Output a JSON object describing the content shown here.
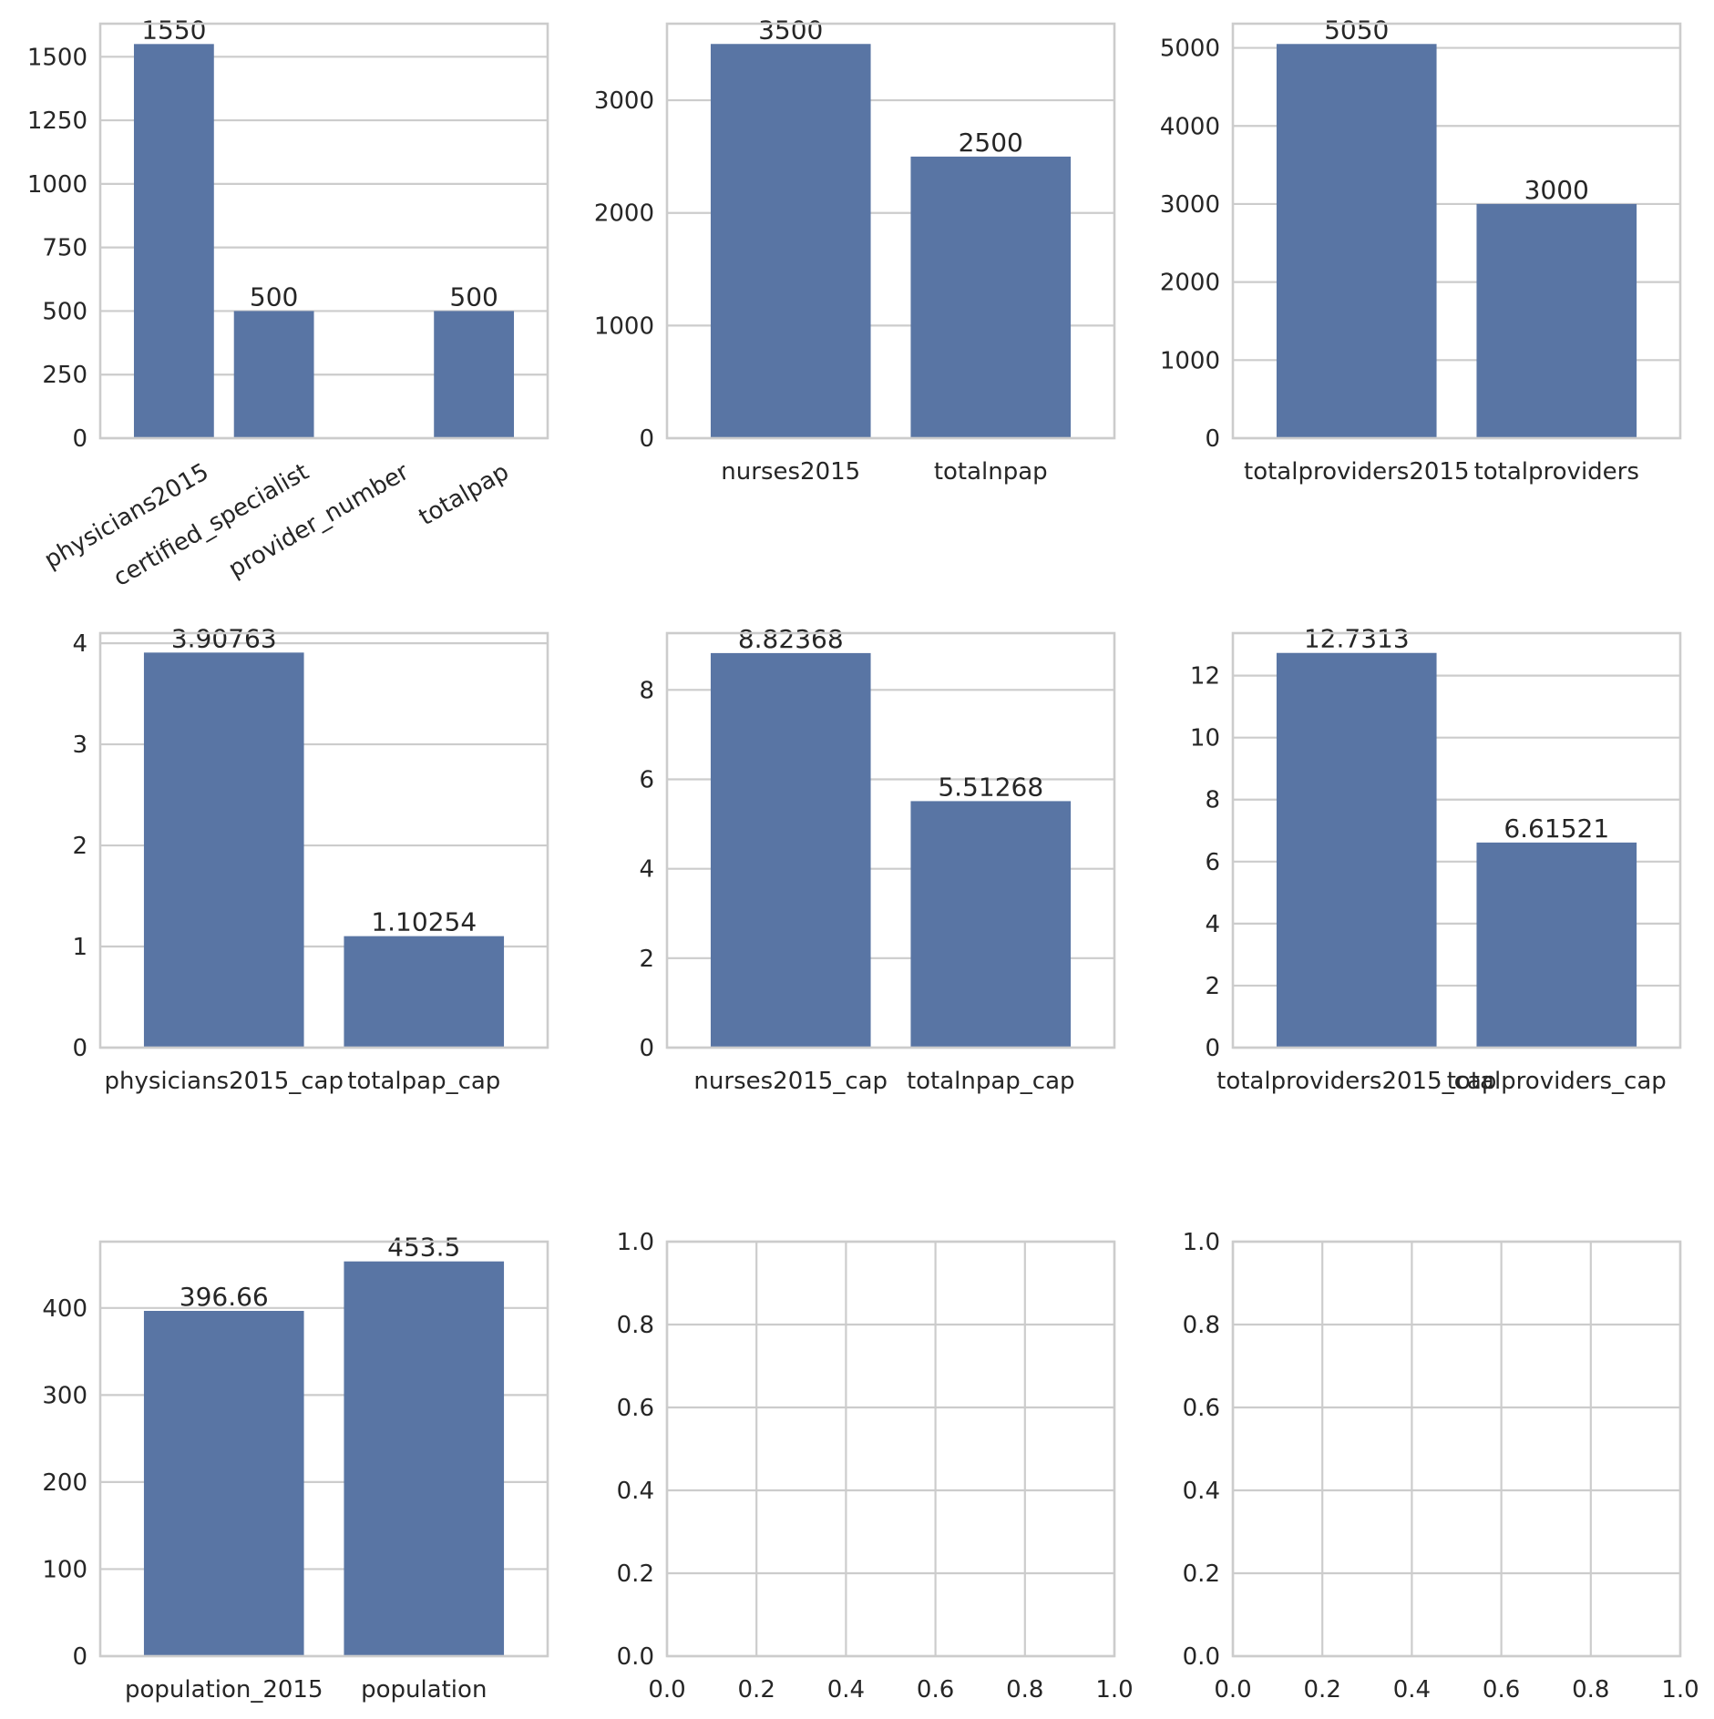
{
  "figure": {
    "bar_color": "#5975a4",
    "grid_color": "#cccccc",
    "frame_color": "#cccccc",
    "text_color": "#262626"
  },
  "chart_data": [
    {
      "type": "bar",
      "categories": [
        "physicians2015",
        "certified_specialist",
        "provider_number",
        "totalpap"
      ],
      "values": [
        1550,
        500,
        null,
        500
      ],
      "value_labels": [
        "1550",
        "500",
        "",
        "500"
      ],
      "ylim": [
        0,
        1630
      ],
      "yticks": [
        0,
        250,
        500,
        750,
        1000,
        1250,
        1500
      ],
      "ytick_labels": [
        "0",
        "250",
        "500",
        "750",
        "1000",
        "1250",
        "1500"
      ],
      "xlabel_rotation": 30,
      "title": "",
      "xlabel": "",
      "ylabel": "",
      "grid": true
    },
    {
      "type": "bar",
      "categories": [
        "nurses2015",
        "totalnpap"
      ],
      "values": [
        3500,
        2500
      ],
      "value_labels": [
        "3500",
        "2500"
      ],
      "ylim": [
        0,
        3680
      ],
      "yticks": [
        0,
        1000,
        2000,
        3000
      ],
      "ytick_labels": [
        "0",
        "1000",
        "2000",
        "3000"
      ],
      "title": "",
      "xlabel": "",
      "ylabel": "",
      "grid": true
    },
    {
      "type": "bar",
      "categories": [
        "totalproviders2015",
        "totalproviders"
      ],
      "values": [
        5050,
        3000
      ],
      "value_labels": [
        "5050",
        "3000"
      ],
      "ylim": [
        0,
        5310
      ],
      "yticks": [
        0,
        1000,
        2000,
        3000,
        4000,
        5000
      ],
      "ytick_labels": [
        "0",
        "1000",
        "2000",
        "3000",
        "4000",
        "5000"
      ],
      "title": "",
      "xlabel": "",
      "ylabel": "",
      "grid": true
    },
    {
      "type": "bar",
      "categories": [
        "physicians2015_cap",
        "totalpap_cap"
      ],
      "values": [
        3.90763,
        1.10254
      ],
      "value_labels": [
        "3.90763",
        "1.10254"
      ],
      "ylim": [
        0,
        4.1
      ],
      "yticks": [
        0,
        1,
        2,
        3,
        4
      ],
      "ytick_labels": [
        "0",
        "1",
        "2",
        "3",
        "4"
      ],
      "title": "",
      "xlabel": "",
      "ylabel": "",
      "grid": true
    },
    {
      "type": "bar",
      "categories": [
        "nurses2015_cap",
        "totalnpap_cap"
      ],
      "values": [
        8.82368,
        5.51268
      ],
      "value_labels": [
        "8.82368",
        "5.51268"
      ],
      "ylim": [
        0,
        9.27
      ],
      "yticks": [
        0,
        2,
        4,
        6,
        8
      ],
      "ytick_labels": [
        "0",
        "2",
        "4",
        "6",
        "8"
      ],
      "title": "",
      "xlabel": "",
      "ylabel": "",
      "grid": true
    },
    {
      "type": "bar",
      "categories": [
        "totalproviders2015_cap",
        "totalproviders_cap"
      ],
      "values": [
        12.7313,
        6.61521
      ],
      "value_labels": [
        "12.7313",
        "6.61521"
      ],
      "ylim": [
        0,
        13.37
      ],
      "yticks": [
        0,
        2,
        4,
        6,
        8,
        10,
        12
      ],
      "ytick_labels": [
        "0",
        "2",
        "4",
        "6",
        "8",
        "10",
        "12"
      ],
      "title": "",
      "xlabel": "",
      "ylabel": "",
      "grid": true
    },
    {
      "type": "bar",
      "categories": [
        "population_2015",
        "population"
      ],
      "values": [
        396.66,
        453.5
      ],
      "value_labels": [
        "396.66",
        "453.5"
      ],
      "ylim": [
        0,
        476.2
      ],
      "yticks": [
        0,
        100,
        200,
        300,
        400
      ],
      "ytick_labels": [
        "0",
        "100",
        "200",
        "300",
        "400"
      ],
      "title": "",
      "xlabel": "",
      "ylabel": "",
      "grid": true
    },
    {
      "type": "empty",
      "xlim": [
        0,
        1
      ],
      "ylim": [
        0,
        1
      ],
      "xticks": [
        0,
        0.2,
        0.4,
        0.6,
        0.8,
        1.0
      ],
      "xtick_labels": [
        "0.0",
        "0.2",
        "0.4",
        "0.6",
        "0.8",
        "1.0"
      ],
      "yticks": [
        0,
        0.2,
        0.4,
        0.6,
        0.8,
        1.0
      ],
      "ytick_labels": [
        "0.0",
        "0.2",
        "0.4",
        "0.6",
        "0.8",
        "1.0"
      ],
      "grid": true
    },
    {
      "type": "empty",
      "xlim": [
        0,
        1
      ],
      "ylim": [
        0,
        1
      ],
      "xticks": [
        0,
        0.2,
        0.4,
        0.6,
        0.8,
        1.0
      ],
      "xtick_labels": [
        "0.0",
        "0.2",
        "0.4",
        "0.6",
        "0.8",
        "1.0"
      ],
      "yticks": [
        0,
        0.2,
        0.4,
        0.6,
        0.8,
        1.0
      ],
      "ytick_labels": [
        "0.0",
        "0.2",
        "0.4",
        "0.6",
        "0.8",
        "1.0"
      ],
      "grid": true
    }
  ]
}
